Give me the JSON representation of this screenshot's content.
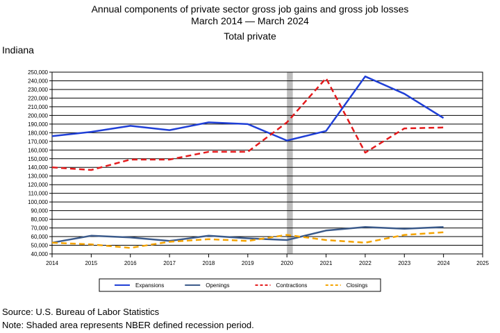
{
  "chart": {
    "title_line1": "Annual components of private sector gross job gains and gross job losses",
    "title_line2": "March 2014 — March 2024",
    "title_line3": "Total private",
    "region": "Indiana",
    "source": "Source: U.S. Bureau of Labor Statistics",
    "note": "Note: Shaded area represents NBER defined recession period."
  },
  "chart_data": {
    "type": "line",
    "x": [
      2014,
      2015,
      2016,
      2017,
      2018,
      2019,
      2020,
      2021,
      2022,
      2023,
      2024
    ],
    "xlim": [
      2014,
      2025
    ],
    "ylim": [
      40000,
      250000
    ],
    "x_ticks": [
      "2014",
      "2015",
      "2016",
      "2017",
      "2018",
      "2019",
      "2020",
      "2021",
      "2022",
      "2023",
      "2024",
      "2025"
    ],
    "y_ticks": [
      "40,000",
      "50,000",
      "60,000",
      "70,000",
      "80,000",
      "90,000",
      "100,000",
      "110,000",
      "120,000",
      "130,000",
      "140,000",
      "150,000",
      "160,000",
      "170,000",
      "180,000",
      "190,000",
      "200,000",
      "210,000",
      "220,000",
      "230,000",
      "240,000",
      "250,000"
    ],
    "recession": [
      2020.0,
      2020.15
    ],
    "grid": "horizontal",
    "legend_position": "bottom",
    "series": [
      {
        "name": "Expansions",
        "color": "#1f3fd6",
        "dash": "solid",
        "values": [
          176000,
          181000,
          188000,
          183000,
          192000,
          190000,
          171000,
          182000,
          245000,
          225000,
          197000
        ]
      },
      {
        "name": "Openings",
        "color": "#3b5a8a",
        "dash": "solid",
        "values": [
          53000,
          61000,
          59000,
          55000,
          61000,
          58000,
          56000,
          67000,
          71000,
          69000,
          71000
        ]
      },
      {
        "name": "Contractions",
        "color": "#e31a1c",
        "dash": "dashed",
        "values": [
          140000,
          137000,
          149000,
          149000,
          158000,
          158000,
          192000,
          243000,
          157000,
          185000,
          186000
        ]
      },
      {
        "name": "Closings",
        "color": "#f4a300",
        "dash": "dashed",
        "values": [
          53000,
          51000,
          47000,
          54000,
          57000,
          55000,
          62000,
          56000,
          53000,
          62000,
          65000
        ]
      }
    ]
  }
}
